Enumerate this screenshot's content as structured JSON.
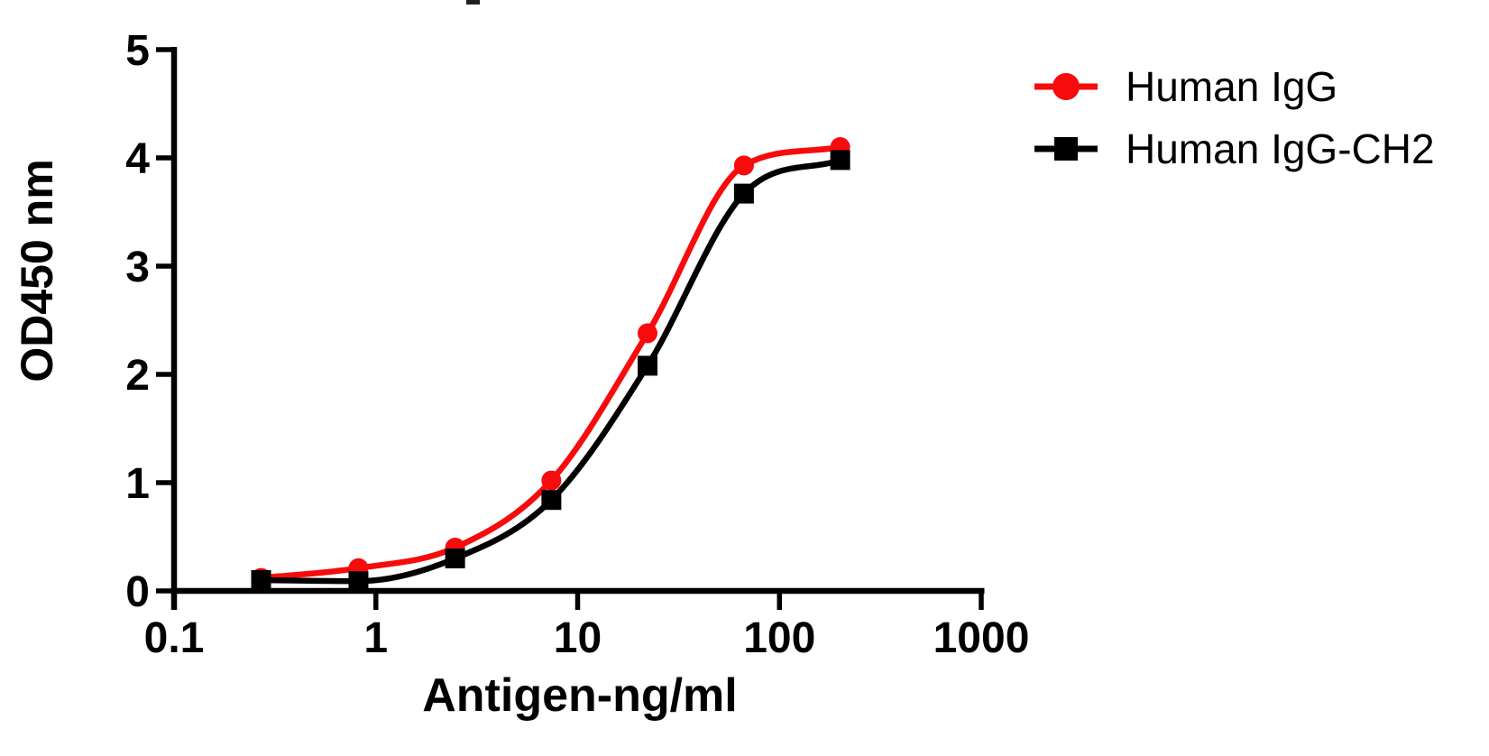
{
  "chart_data": {
    "type": "line",
    "title": "",
    "xlabel": "Antigen-ng/ml",
    "ylabel": "OD450 nm",
    "x_scale": "log",
    "xlim": [
      0.1,
      1000
    ],
    "ylim": [
      0,
      5
    ],
    "x_ticks": [
      0.1,
      1,
      10,
      100,
      1000
    ],
    "x_tick_labels": [
      "0.1",
      "1",
      "10",
      "100",
      "1000"
    ],
    "y_ticks": [
      0,
      1,
      2,
      3,
      4,
      5
    ],
    "y_tick_labels": [
      "0",
      "1",
      "2",
      "3",
      "4",
      "5"
    ],
    "grid": false,
    "legend_position": "top-right",
    "axis_color": "#000000",
    "background_color": "#ffffff",
    "series": [
      {
        "name": "Human IgG",
        "color": "#f70b0c",
        "marker": "circle",
        "x": [
          0.27,
          0.82,
          2.47,
          7.41,
          22.2,
          66.7,
          200
        ],
        "y": [
          0.12,
          0.21,
          0.4,
          1.02,
          2.38,
          3.93,
          4.1
        ]
      },
      {
        "name": "Human IgG-CH2",
        "color": "#000000",
        "marker": "square",
        "x": [
          0.27,
          0.82,
          2.47,
          7.41,
          22.2,
          66.7,
          200
        ],
        "y": [
          0.1,
          0.09,
          0.3,
          0.84,
          2.08,
          3.67,
          3.98
        ]
      }
    ]
  }
}
